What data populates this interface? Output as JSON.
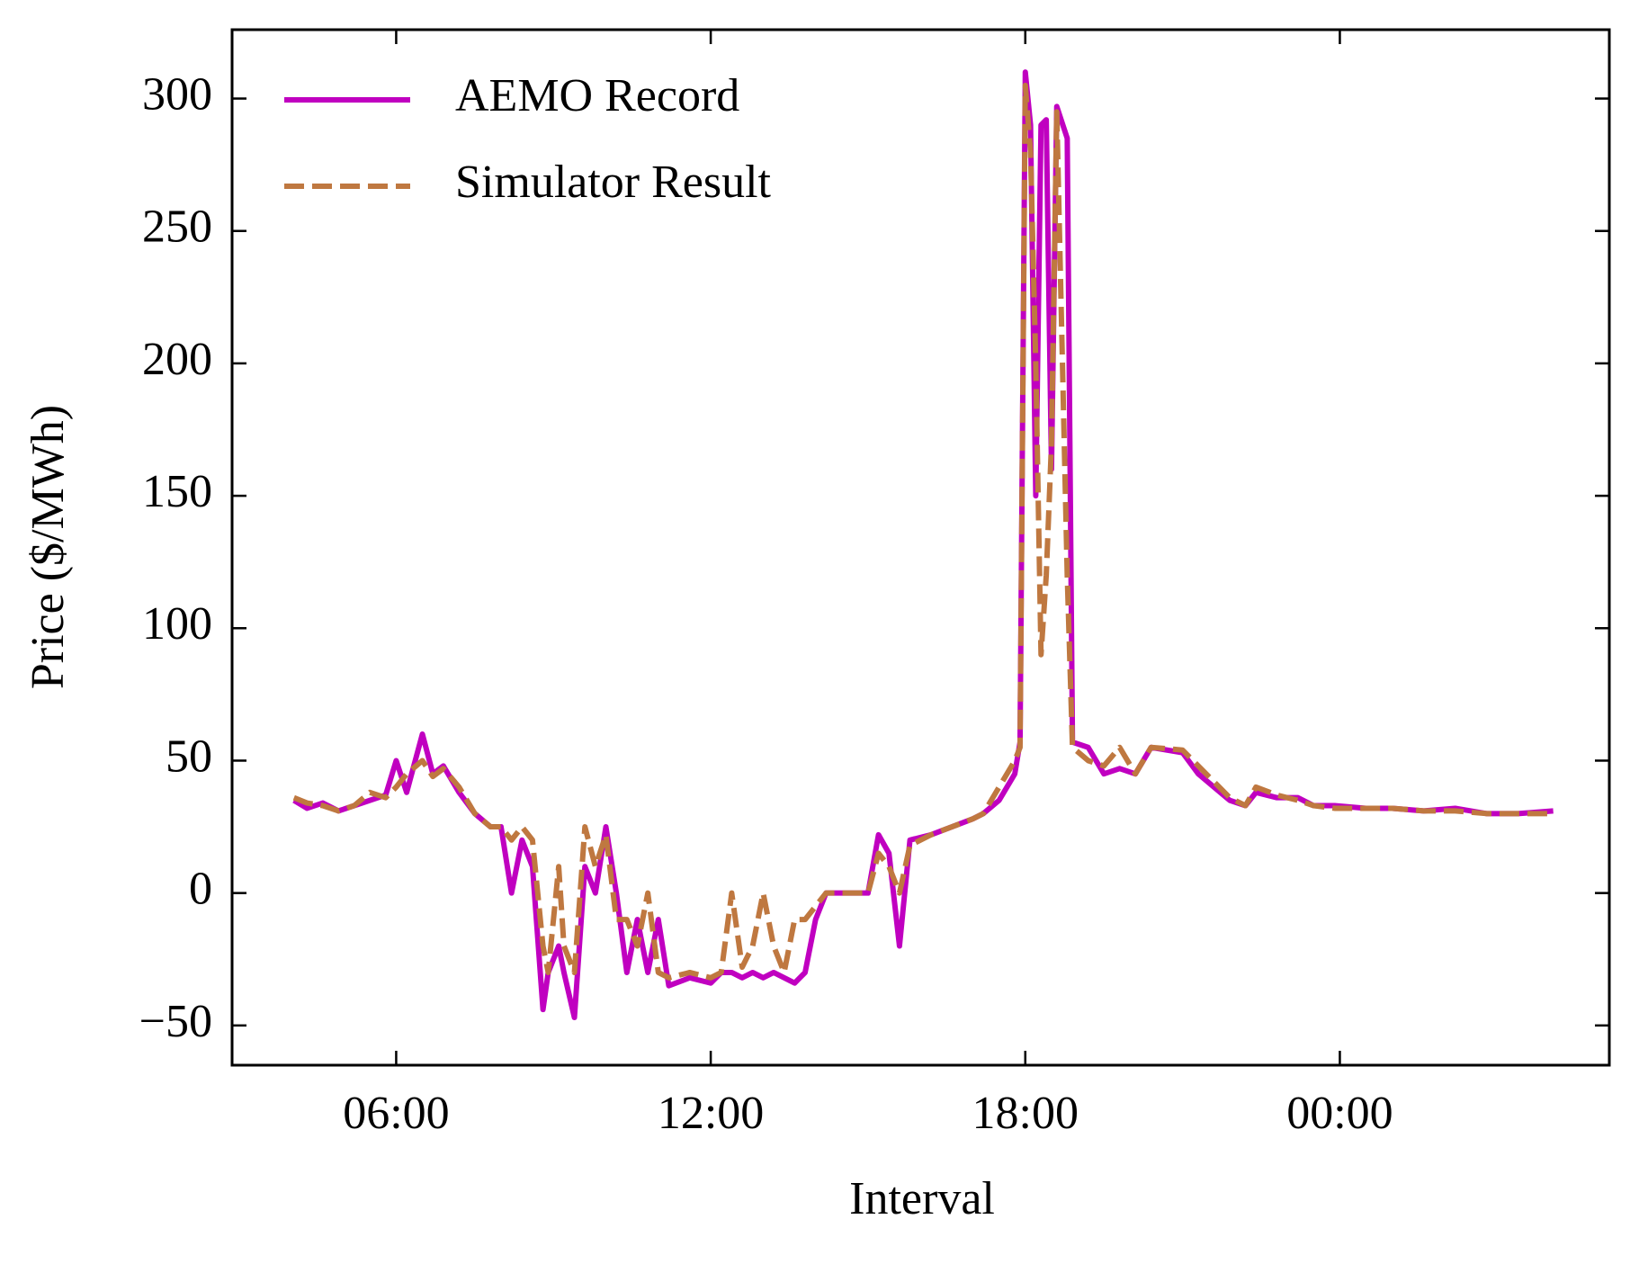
{
  "chart_data": {
    "type": "line",
    "xlabel": "Interval",
    "ylabel": "Price ($/MWh)",
    "x": [
      4.05,
      4.3,
      4.6,
      4.9,
      5.2,
      5.5,
      5.8,
      6.0,
      6.2,
      6.5,
      6.7,
      6.9,
      7.2,
      7.5,
      7.8,
      8.0,
      8.2,
      8.4,
      8.6,
      8.8,
      8.9,
      9.1,
      9.2,
      9.4,
      9.6,
      9.8,
      10.0,
      10.2,
      10.4,
      10.6,
      10.8,
      11.0,
      11.2,
      11.6,
      12.0,
      12.2,
      12.4,
      12.6,
      12.8,
      13.0,
      13.2,
      13.4,
      13.6,
      13.8,
      14.0,
      14.2,
      14.6,
      15.0,
      15.2,
      15.4,
      15.6,
      15.8,
      16.2,
      16.6,
      17.0,
      17.2,
      17.5,
      17.8,
      17.9,
      18.0,
      18.1,
      18.2,
      18.3,
      18.4,
      18.5,
      18.6,
      18.8,
      18.9,
      19.2,
      19.5,
      19.8,
      20.1,
      20.4,
      21.0,
      21.3,
      21.6,
      21.9,
      22.2,
      22.4,
      22.8,
      23.2,
      23.5,
      23.9,
      24.5,
      25.0,
      25.6,
      26.2,
      26.8,
      27.4,
      28.07
    ],
    "series": [
      {
        "name": "AEMO Record",
        "color": "#c000c0",
        "linestyle": "solid",
        "values": [
          35,
          32,
          34,
          31,
          33,
          35,
          37,
          50,
          38,
          60,
          45,
          48,
          38,
          30,
          25,
          25,
          0,
          20,
          10,
          -44,
          -30,
          -20,
          -30,
          -47,
          10,
          0,
          25,
          0,
          -30,
          -10,
          -30,
          -10,
          -35,
          -32,
          -34,
          -30,
          -30,
          -32,
          -30,
          -32,
          -30,
          -32,
          -34,
          -30,
          -10,
          0,
          0,
          0,
          22,
          15,
          -20,
          20,
          22,
          25,
          28,
          30,
          35,
          45,
          57,
          310,
          290,
          150,
          290,
          292,
          160,
          297,
          285,
          57,
          55,
          45,
          47,
          45,
          55,
          53,
          45,
          40,
          35,
          33,
          38,
          36,
          36,
          33,
          33,
          32,
          32,
          31,
          32,
          30,
          30,
          31
        ]
      },
      {
        "name": "Simulator Result",
        "color": "#bf7840",
        "linestyle": "dashed",
        "values": [
          36,
          34,
          33,
          31,
          33,
          38,
          36,
          40,
          45,
          50,
          44,
          47,
          40,
          30,
          25,
          25,
          20,
          25,
          20,
          -20,
          -30,
          10,
          -20,
          -30,
          25,
          10,
          22,
          -10,
          -10,
          -20,
          0,
          -30,
          -32,
          -30,
          -32,
          -30,
          0,
          -28,
          -20,
          0,
          -20,
          -30,
          -10,
          -10,
          -5,
          0,
          0,
          0,
          15,
          10,
          0,
          18,
          22,
          25,
          28,
          30,
          40,
          50,
          55,
          305,
          280,
          200,
          90,
          120,
          170,
          295,
          120,
          55,
          50,
          48,
          55,
          45,
          55,
          54,
          48,
          42,
          36,
          33,
          40,
          37,
          35,
          33,
          32,
          32,
          32,
          31,
          31,
          30,
          30,
          30
        ]
      }
    ],
    "xlim": [
      2.87,
      29.14
    ],
    "ylim": [
      -65,
      326
    ],
    "xticks": [
      {
        "value": 6,
        "label": "06:00"
      },
      {
        "value": 12,
        "label": "12:00"
      },
      {
        "value": 18,
        "label": "18:00"
      },
      {
        "value": 24,
        "label": "00:00"
      }
    ],
    "yticks": [
      -50,
      0,
      50,
      100,
      150,
      200,
      250,
      300
    ],
    "ytick_labels_override": null,
    "legend": "upper left",
    "grid": false
  }
}
